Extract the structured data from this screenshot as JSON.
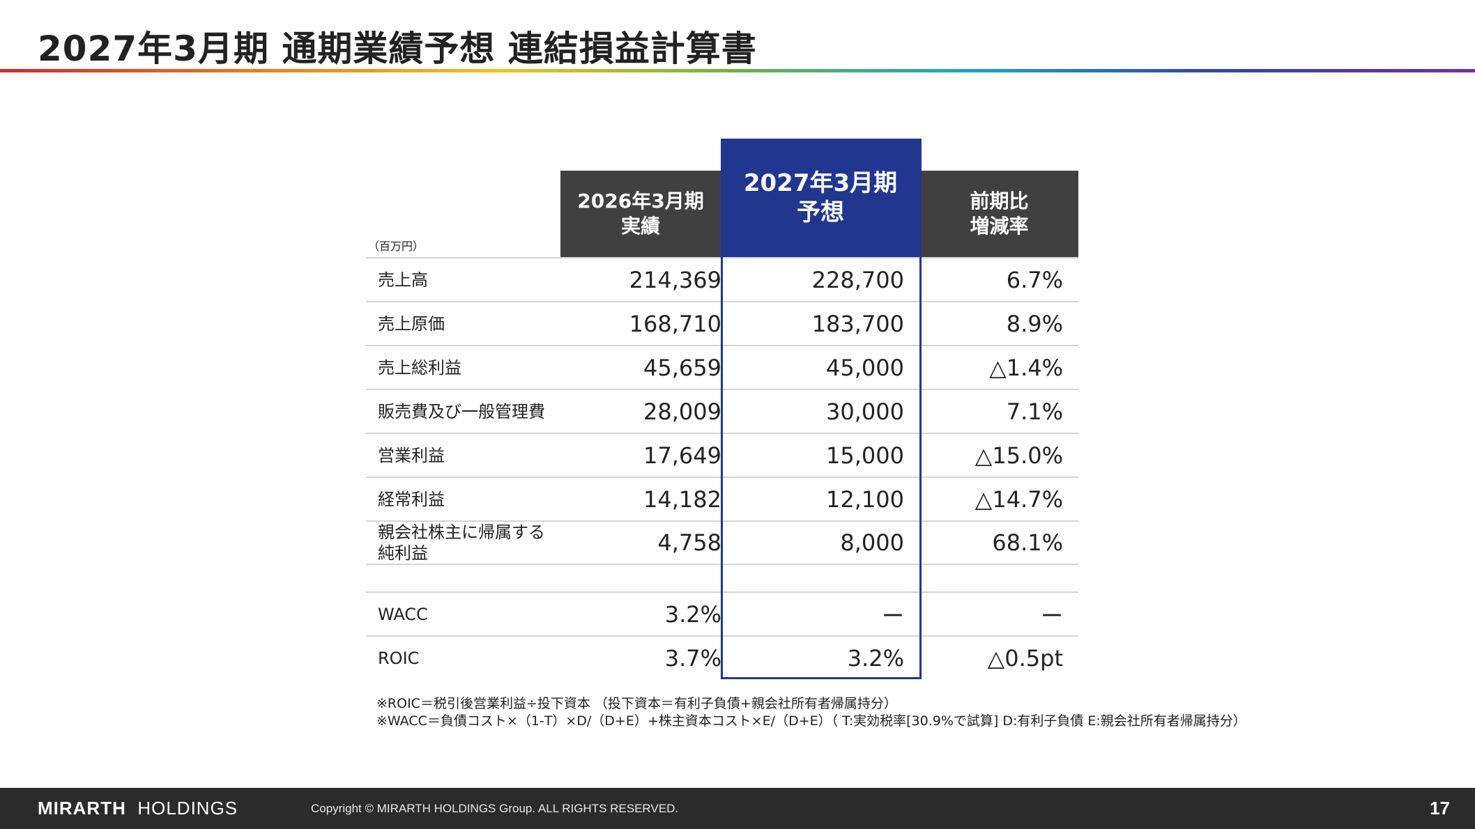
{
  "title": "2027年3月期 通期業績予想 連結損益計算書",
  "unit_label": "（百万円）",
  "headers": {
    "col1": [
      "2026年3月期",
      "実績"
    ],
    "col2": [
      "2027年3月期",
      "予想"
    ],
    "col3": [
      "前期比",
      "増減率"
    ]
  },
  "rows": [
    {
      "label": "売上高",
      "actual": "214,369",
      "forecast": "228,700",
      "change": "6.7%"
    },
    {
      "label": "売上原価",
      "actual": "168,710",
      "forecast": "183,700",
      "change": "8.9%"
    },
    {
      "label": "売上総利益",
      "actual": "45,659",
      "forecast": "45,000",
      "change": "△1.4%"
    },
    {
      "label": "販売費及び一般管理費",
      "actual": "28,009",
      "forecast": "30,000",
      "change": "7.1%"
    },
    {
      "label": "営業利益",
      "actual": "17,649",
      "forecast": "15,000",
      "change": "△15.0%"
    },
    {
      "label": "経常利益",
      "actual": "14,182",
      "forecast": "12,100",
      "change": "△14.7%"
    },
    {
      "label": "親会社株主に帰属する純利益",
      "label_lines": [
        "親会社株主に帰属する",
        "純利益"
      ],
      "actual": "4,758",
      "forecast": "8,000",
      "change": "68.1%"
    }
  ],
  "extra_rows": [
    {
      "label": "WACC",
      "actual": "3.2%",
      "forecast": "ー",
      "change": "ー"
    },
    {
      "label": "ROIC",
      "actual": "3.7%",
      "forecast": "3.2%",
      "change": "△0.5pt"
    }
  ],
  "notes": [
    "※ROIC＝税引後営業利益÷投下資本 （投下資本＝有利子負債+親会社所有者帰属持分）",
    "※WACC＝負債コスト×（1-T）×D/（D+E）+株主資本コスト×E/（D+E）（ T:実効税率[30.9%で試算] D:有利子負債 E:親会社所有者帰属持分）"
  ],
  "footer": {
    "brand_bold": "MIRARTH",
    "brand_rest": "HOLDINGS",
    "copyright": "Copyright © MIRARTH HOLDINGS Group. ALL RIGHTS RESERVED.",
    "page_number": "17"
  },
  "colors": {
    "header_gray": "#404040",
    "header_blue": "#21368f",
    "footer_bg": "#2b2b2b"
  }
}
